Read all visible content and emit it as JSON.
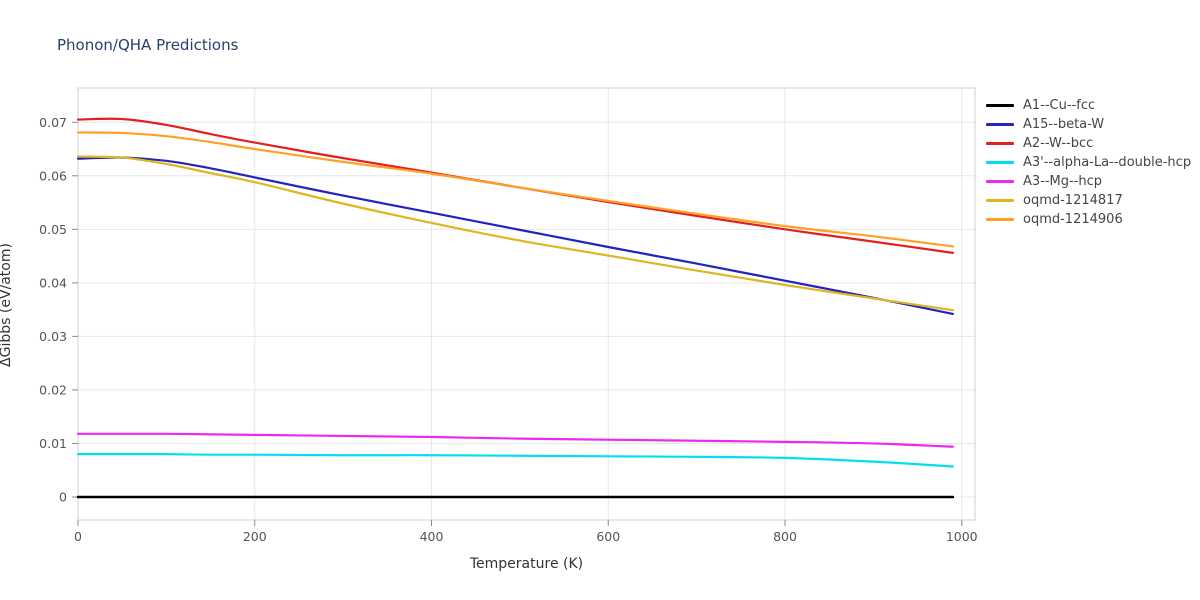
{
  "chart_data": {
    "type": "line",
    "title": "Phonon/QHA Predictions",
    "xlabel": "Temperature (K)",
    "ylabel": "ΔGibbs (eV/atom)",
    "xlim": [
      0,
      1015
    ],
    "ylim": [
      -0.0043,
      0.0764
    ],
    "x_ticks": [
      0,
      200,
      400,
      600,
      800,
      1000
    ],
    "y_ticks": [
      0,
      0.01,
      0.02,
      0.03,
      0.04,
      0.05,
      0.06,
      0.07
    ],
    "grid": true,
    "legend_position": "right-outside",
    "x": [
      0,
      50,
      100,
      150,
      200,
      300,
      400,
      500,
      600,
      700,
      800,
      900,
      990
    ],
    "series": [
      {
        "name": "A1--Cu--fcc",
        "color": "#000000",
        "width": 2.5,
        "values": [
          0,
          0,
          0,
          0,
          0,
          0,
          0,
          0,
          0,
          0,
          0,
          0,
          0
        ]
      },
      {
        "name": "A15--beta-W",
        "color": "#2323bf",
        "width": 2.2,
        "values": [
          0.0632,
          0.0634,
          0.0628,
          0.0614,
          0.0597,
          0.0563,
          0.0531,
          0.0499,
          0.0467,
          0.0436,
          0.0404,
          0.0372,
          0.0342
        ]
      },
      {
        "name": "A2--W--bcc",
        "color": "#e32020",
        "width": 2.2,
        "values": [
          0.0705,
          0.0706,
          0.0695,
          0.0678,
          0.0662,
          0.0633,
          0.0606,
          0.0578,
          0.0551,
          0.0525,
          0.05,
          0.0477,
          0.0456
        ]
      },
      {
        "name": "A3'--alpha-La--double-hcp",
        "color": "#00dff2",
        "width": 2.2,
        "values": [
          0.008,
          0.008,
          0.008,
          0.0079,
          0.0079,
          0.0078,
          0.0078,
          0.0077,
          0.0076,
          0.0075,
          0.0073,
          0.0066,
          0.0057
        ]
      },
      {
        "name": "A3--Mg--hcp",
        "color": "#ee29ee",
        "width": 2.2,
        "values": [
          0.0118,
          0.0118,
          0.0118,
          0.0117,
          0.0116,
          0.0114,
          0.0112,
          0.0109,
          0.0107,
          0.0105,
          0.0103,
          0.01,
          0.0094
        ]
      },
      {
        "name": "oqmd-1214817",
        "color": "#e0b520",
        "width": 2.2,
        "values": [
          0.0636,
          0.0634,
          0.0622,
          0.0605,
          0.0588,
          0.0548,
          0.0512,
          0.0479,
          0.0451,
          0.0423,
          0.0396,
          0.0371,
          0.0349
        ]
      },
      {
        "name": "oqmd-1214906",
        "color": "#ffa024",
        "width": 2.2,
        "values": [
          0.0681,
          0.068,
          0.0674,
          0.0663,
          0.065,
          0.0626,
          0.0604,
          0.0578,
          0.0553,
          0.0529,
          0.0506,
          0.0487,
          0.0468
        ]
      }
    ]
  },
  "colors": {
    "title": "#2b3f66",
    "axis_title": "#333333",
    "tick_label": "#555555",
    "grid": "#e7e7e7",
    "frame": "#d0d0d0",
    "tick_mark": "#8a8a8a",
    "background": "#ffffff"
  }
}
